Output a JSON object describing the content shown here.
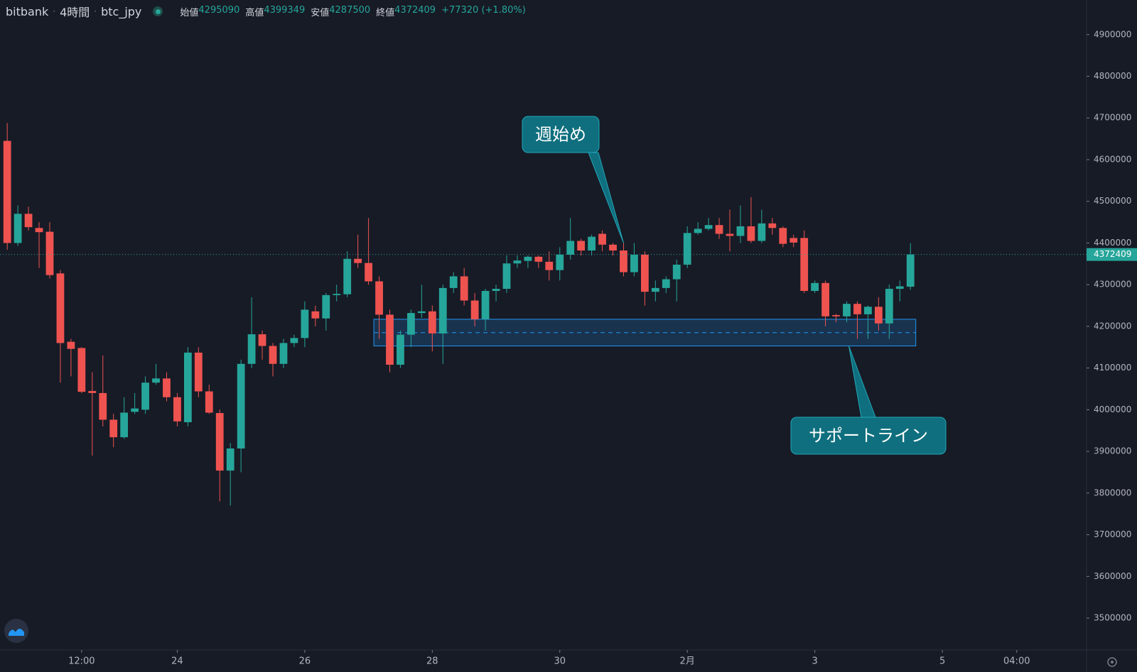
{
  "header": {
    "exchange": "bitbank",
    "interval": "4時間",
    "symbol": "btc_jpy",
    "labels": [
      "始値",
      "高値",
      "安値",
      "終値"
    ],
    "change": "+77320 (+1.80%)"
  },
  "chart_data": {
    "type": "candlestick",
    "up_color": "#26a69a",
    "down_color": "#ef5350",
    "open": [
      4645000,
      4400000,
      4470000,
      4436000,
      4427000,
      4327000,
      4163000,
      4148000,
      4045000,
      4040000,
      3976000,
      3934000,
      3995000,
      4000000,
      4065000,
      4075000,
      4030000,
      3970000,
      4137000,
      4044000,
      3992000,
      3854000,
      3907000,
      4110000,
      4181000,
      4153000,
      4110000,
      4160000,
      4172000,
      4236000,
      4219000,
      4275000,
      4277000,
      4362000,
      4352000,
      4308000,
      4228000,
      4108000,
      4180000,
      4232000,
      4236000,
      4183000,
      4292000,
      4320000,
      4262000,
      4217000,
      4285000,
      4290000,
      4351000,
      4357000,
      4367000,
      4355000,
      4335000,
      4372000,
      4405000,
      4382000,
      4422000,
      4396000,
      4382000,
      4330000,
      4372000,
      4283000,
      4292000,
      4313000,
      4348000,
      4424000,
      4434000,
      4443000,
      4422000,
      4417000,
      4440000,
      4405000,
      4447000,
      4436000,
      4412000,
      4412000,
      4285000,
      4304000,
      4227000,
      4224000,
      4254000,
      4229000,
      4247000,
      4207000,
      4290000,
      4295090
    ],
    "high": [
      4688000,
      4490000,
      4487000,
      4450000,
      4450000,
      4335000,
      4170000,
      4150000,
      4090000,
      4130000,
      3990000,
      4030000,
      4040000,
      4080000,
      4110000,
      4090000,
      4040000,
      4150000,
      4150000,
      4060000,
      4000000,
      3920000,
      4120000,
      4270000,
      4190000,
      4160000,
      4170000,
      4180000,
      4260000,
      4250000,
      4280000,
      4300000,
      4380000,
      4420000,
      4460000,
      4320000,
      4240000,
      4190000,
      4240000,
      4300000,
      4250000,
      4300000,
      4330000,
      4340000,
      4280000,
      4290000,
      4300000,
      4370000,
      4370000,
      4370000,
      4370000,
      4380000,
      4390000,
      4460000,
      4410000,
      4420000,
      4430000,
      4400000,
      4400000,
      4400000,
      4380000,
      4310000,
      4320000,
      4360000,
      4440000,
      4450000,
      4460000,
      4460000,
      4480000,
      4490000,
      4510000,
      4480000,
      4460000,
      4440000,
      4420000,
      4430000,
      4310000,
      4310000,
      4230000,
      4260000,
      4260000,
      4250000,
      4270000,
      4300000,
      4310000,
      4399349
    ],
    "low": [
      4384000,
      4393000,
      4430000,
      4340000,
      4315000,
      4065000,
      4080000,
      4040000,
      3890000,
      3960000,
      3910000,
      3930000,
      3990000,
      3990000,
      4060000,
      4020000,
      3960000,
      3960000,
      4030000,
      3990000,
      3780000,
      3770000,
      3850000,
      4100000,
      4120000,
      4080000,
      4100000,
      4150000,
      4150000,
      4200000,
      4190000,
      4260000,
      4270000,
      4340000,
      4300000,
      4170000,
      4090000,
      4100000,
      4150000,
      4220000,
      4140000,
      4110000,
      4280000,
      4250000,
      4200000,
      4190000,
      4260000,
      4280000,
      4340000,
      4340000,
      4340000,
      4310000,
      4310000,
      4360000,
      4370000,
      4370000,
      4380000,
      4370000,
      4320000,
      4320000,
      4250000,
      4260000,
      4280000,
      4260000,
      4340000,
      4420000,
      4430000,
      4410000,
      4380000,
      4400000,
      4400000,
      4400000,
      4420000,
      4390000,
      4390000,
      4280000,
      4280000,
      4200000,
      4210000,
      4210000,
      4170000,
      4170000,
      4190000,
      4170000,
      4260000,
      4287500
    ],
    "close": [
      4400000,
      4470000,
      4438000,
      4426000,
      4323000,
      4160000,
      4146000,
      4043000,
      4040000,
      3976000,
      3934000,
      3993000,
      4003000,
      4065000,
      4075000,
      4030000,
      3972000,
      4137000,
      4044000,
      3993000,
      3854000,
      3907000,
      4110000,
      4181000,
      4153000,
      4110000,
      4160000,
      4172000,
      4240000,
      4219000,
      4275000,
      4278000,
      4362000,
      4352000,
      4308000,
      4228000,
      4108000,
      4180000,
      4232000,
      4236000,
      4183000,
      4292000,
      4320000,
      4262000,
      4217000,
      4285000,
      4290000,
      4351000,
      4358000,
      4367000,
      4355000,
      4335000,
      4372000,
      4405000,
      4382000,
      4415000,
      4396000,
      4382000,
      4330000,
      4372000,
      4283000,
      4292000,
      4313000,
      4348000,
      4424000,
      4434000,
      4443000,
      4422000,
      4417000,
      4440000,
      4405000,
      4447000,
      4436000,
      4398000,
      4401000,
      4285000,
      4304000,
      4224000,
      4224000,
      4254000,
      4229000,
      4247000,
      4207000,
      4290000,
      4296000,
      4372409
    ],
    "ylim": [
      3423500,
      4983000
    ],
    "yticks": [
      3500000,
      3600000,
      3700000,
      3800000,
      3900000,
      4000000,
      4100000,
      4200000,
      4300000,
      4400000,
      4500000,
      4600000,
      4700000,
      4800000,
      4900000
    ],
    "xlim": [
      -0.68,
      101.57
    ],
    "xticks": [
      {
        "value": 7,
        "label": "12:00"
      },
      {
        "value": 16,
        "label": "24"
      },
      {
        "value": 28,
        "label": "26"
      },
      {
        "value": 40,
        "label": "28"
      },
      {
        "value": 52,
        "label": "30"
      },
      {
        "value": 64,
        "label": "2月"
      },
      {
        "value": 76,
        "label": "3"
      },
      {
        "value": 88,
        "label": "5"
      },
      {
        "value": 95,
        "label": "04:00"
      }
    ],
    "support_zone": {
      "top": 4217000,
      "bottom": 4153000,
      "mid": 4185000
    },
    "annotations": [
      "週始め",
      "サポートライン"
    ]
  }
}
